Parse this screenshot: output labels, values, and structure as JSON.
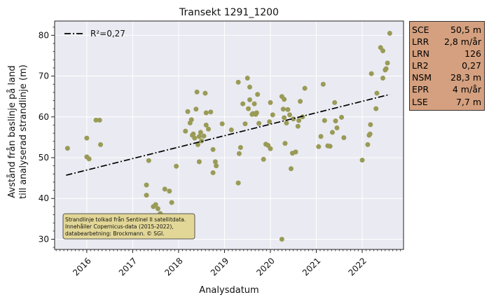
{
  "chart_data": {
    "type": "scatter",
    "title": "Transekt 1291_1200",
    "xlabel": "Analysdatum",
    "ylabel_line1": "Avstånd från baslinje på land",
    "ylabel_line2": "till analyserad strandlinje (m)",
    "xlim": [
      2015.3,
      2022.9
    ],
    "ylim": [
      27.5,
      83.5
    ],
    "x_ticks": [
      {
        "value": 2016,
        "label": "2016"
      },
      {
        "value": 2017,
        "label": "2017"
      },
      {
        "value": 2018,
        "label": "2018"
      },
      {
        "value": 2019,
        "label": "2019"
      },
      {
        "value": 2020,
        "label": "2020"
      },
      {
        "value": 2021,
        "label": "2021"
      },
      {
        "value": 2022,
        "label": "2022"
      }
    ],
    "y_ticks": [
      30,
      40,
      50,
      60,
      70,
      80
    ],
    "grid": true,
    "legend": {
      "position": "top-left",
      "label": "R²=0,27"
    },
    "trend_line": {
      "x": [
        2015.55,
        2022.6
      ],
      "y": [
        45.7,
        65.5
      ],
      "style": "dash-dot"
    },
    "point_color": "#999b56",
    "annotation": {
      "lines": [
        "Strandlinje tolkad från Sentinel II satellitdata.",
        "Innehåller Copernicus-data (2015-2022),",
        "databearbetning: Brockmann. © SGI."
      ],
      "position": "bottom-left"
    },
    "stats": [
      {
        "key": "SCE",
        "value": "50,5 m"
      },
      {
        "key": "LRR",
        "value": "2,8 m/år"
      },
      {
        "key": "LRN",
        "value": "126"
      },
      {
        "key": "LR2",
        "value": "0,27"
      },
      {
        "key": "NSM",
        "value": "28,3 m"
      },
      {
        "key": "EPR",
        "value": "4 m/år"
      },
      {
        "key": "LSE",
        "value": "7,7 m"
      }
    ],
    "points": [
      [
        2015.58,
        52.3
      ],
      [
        2016.0,
        54.8
      ],
      [
        2016.0,
        50.2
      ],
      [
        2016.05,
        49.7
      ],
      [
        2016.2,
        59.2
      ],
      [
        2016.28,
        59.2
      ],
      [
        2016.3,
        53.2
      ],
      [
        2017.3,
        43.3
      ],
      [
        2017.3,
        40.8
      ],
      [
        2017.35,
        49.3
      ],
      [
        2017.45,
        38.0
      ],
      [
        2017.5,
        38.5
      ],
      [
        2017.55,
        37.5
      ],
      [
        2017.6,
        36.3
      ],
      [
        2017.7,
        42.3
      ],
      [
        2017.8,
        41.8
      ],
      [
        2017.85,
        39.0
      ],
      [
        2017.95,
        47.9
      ],
      [
        2018.15,
        56.5
      ],
      [
        2018.2,
        61.3
      ],
      [
        2018.25,
        58.5
      ],
      [
        2018.28,
        59.3
      ],
      [
        2018.3,
        55.5
      ],
      [
        2018.32,
        55.8
      ],
      [
        2018.35,
        54.8
      ],
      [
        2018.38,
        61.9
      ],
      [
        2018.4,
        66.1
      ],
      [
        2018.42,
        53.2
      ],
      [
        2018.45,
        49.0
      ],
      [
        2018.45,
        55.2
      ],
      [
        2018.48,
        56.2
      ],
      [
        2018.5,
        54.1
      ],
      [
        2018.55,
        55.3
      ],
      [
        2018.58,
        65.8
      ],
      [
        2018.6,
        61.0
      ],
      [
        2018.6,
        58.0
      ],
      [
        2018.65,
        57.0
      ],
      [
        2018.7,
        61.2
      ],
      [
        2018.75,
        46.3
      ],
      [
        2018.75,
        52.0
      ],
      [
        2018.8,
        49.0
      ],
      [
        2018.82,
        48.0
      ],
      [
        2018.95,
        58.3
      ],
      [
        2019.15,
        56.8
      ],
      [
        2019.3,
        43.8
      ],
      [
        2019.3,
        68.5
      ],
      [
        2019.35,
        52.5
      ],
      [
        2019.32,
        51.0
      ],
      [
        2019.4,
        63.2
      ],
      [
        2019.45,
        58.3
      ],
      [
        2019.5,
        69.5
      ],
      [
        2019.52,
        62.0
      ],
      [
        2019.55,
        67.3
      ],
      [
        2019.55,
        64.2
      ],
      [
        2019.6,
        60.6
      ],
      [
        2019.62,
        60.8
      ],
      [
        2019.65,
        63.2
      ],
      [
        2019.68,
        60.6
      ],
      [
        2019.7,
        61.0
      ],
      [
        2019.72,
        65.5
      ],
      [
        2019.75,
        58.4
      ],
      [
        2019.85,
        49.6
      ],
      [
        2019.9,
        53.3
      ],
      [
        2019.95,
        53.0
      ],
      [
        2019.98,
        58.8
      ],
      [
        2020.0,
        52.2
      ],
      [
        2020.0,
        63.5
      ],
      [
        2020.05,
        60.5
      ],
      [
        2020.25,
        65.0
      ],
      [
        2020.28,
        61.9
      ],
      [
        2020.3,
        64.3
      ],
      [
        2020.3,
        59.8
      ],
      [
        2020.32,
        53.5
      ],
      [
        2020.35,
        58.5
      ],
      [
        2020.38,
        61.8
      ],
      [
        2020.42,
        60.5
      ],
      [
        2020.45,
        47.3
      ],
      [
        2020.48,
        51.1
      ],
      [
        2020.5,
        59.5
      ],
      [
        2020.55,
        51.4
      ],
      [
        2020.6,
        57.7
      ],
      [
        2020.62,
        59.1
      ],
      [
        2020.65,
        63.8
      ],
      [
        2020.7,
        60.0
      ],
      [
        2020.75,
        67.0
      ],
      [
        2020.25,
        30.0
      ],
      [
        2021.05,
        52.7
      ],
      [
        2021.1,
        55.2
      ],
      [
        2021.15,
        68.0
      ],
      [
        2021.18,
        59.1
      ],
      [
        2021.25,
        52.9
      ],
      [
        2021.3,
        52.8
      ],
      [
        2021.35,
        56.2
      ],
      [
        2021.4,
        63.5
      ],
      [
        2021.42,
        59.0
      ],
      [
        2021.45,
        57.3
      ],
      [
        2021.55,
        59.9
      ],
      [
        2021.6,
        54.9
      ],
      [
        2022.0,
        49.4
      ],
      [
        2022.12,
        53.2
      ],
      [
        2022.15,
        55.5
      ],
      [
        2022.17,
        55.8
      ],
      [
        2022.18,
        58.1
      ],
      [
        2022.2,
        70.6
      ],
      [
        2022.3,
        62.0
      ],
      [
        2022.32,
        65.8
      ],
      [
        2022.4,
        77.0
      ],
      [
        2022.45,
        76.2
      ],
      [
        2022.45,
        69.5
      ],
      [
        2022.5,
        71.5
      ],
      [
        2022.52,
        71.8
      ],
      [
        2022.55,
        73.2
      ],
      [
        2022.6,
        80.5
      ]
    ]
  }
}
